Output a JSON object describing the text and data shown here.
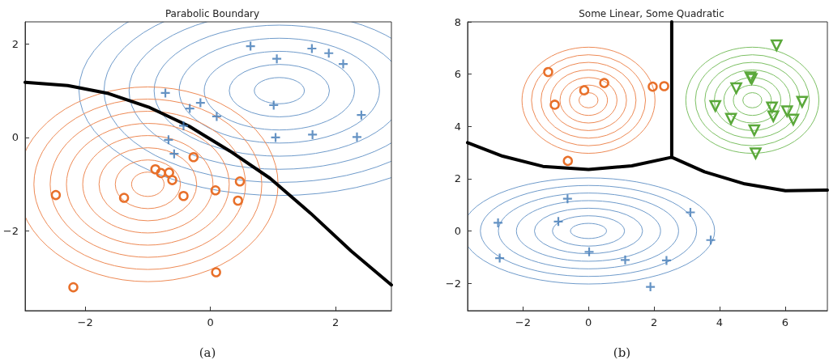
{
  "chart_data": [
    {
      "type": "scatter",
      "title": "Parabolic Boundary",
      "annotations": [
        "(a)"
      ],
      "xlim": [
        -2.96,
        2.89
      ],
      "ylim": [
        -3.7,
        2.47
      ],
      "xticks": [
        -2,
        0,
        2
      ],
      "yticks": [
        -2,
        0,
        2
      ],
      "grid": false,
      "series": [
        {
          "type": "line",
          "color": "#000000",
          "marker": "none",
          "x": [
            -2.96,
            -2.28,
            -1.63,
            -0.99,
            -0.34,
            0.31,
            0.95,
            1.6,
            2.25,
            2.89
          ],
          "values": [
            1.18,
            1.11,
            0.94,
            0.65,
            0.24,
            -0.29,
            -0.87,
            -1.62,
            -2.43,
            -3.15
          ]
        },
        {
          "color": "#3f78b5",
          "marker": "cross",
          "x": [
            0.64,
            1.06,
            1.62,
            1.89,
            2.12,
            -0.72,
            -0.33,
            -0.16,
            0.1,
            1.01,
            2.41,
            -0.43,
            -0.67,
            1.04,
            1.63,
            2.34,
            -0.58
          ],
          "values": [
            1.95,
            1.68,
            1.9,
            1.8,
            1.57,
            0.95,
            0.62,
            0.74,
            0.45,
            0.69,
            0.48,
            0.25,
            -0.05,
            0.0,
            0.06,
            0.01,
            -0.35
          ]
        },
        {
          "color": "#e8702a",
          "marker": "circle",
          "x": [
            -0.27,
            -0.88,
            -0.79,
            -0.66,
            -0.61,
            0.47,
            0.08,
            -0.43,
            -1.38,
            -2.47,
            0.44,
            0.09,
            -2.19
          ],
          "values": [
            -0.42,
            -0.68,
            -0.76,
            -0.75,
            -0.91,
            -0.94,
            -1.13,
            -1.25,
            -1.29,
            -1.23,
            -1.35,
            -2.88,
            -3.2
          ]
        }
      ]
    },
    {
      "type": "scatter",
      "title": "Some Linear, Some Quadratic",
      "annotations": [
        "(b)"
      ],
      "xlim": [
        -3.69,
        7.29
      ],
      "ylim": [
        -3.05,
        8
      ],
      "xticks": [
        -2,
        0,
        2,
        4,
        6
      ],
      "yticks": [
        -2,
        0,
        2,
        4,
        6,
        8
      ],
      "grid": false,
      "series": [
        {
          "type": "line",
          "color": "#000000",
          "marker": "none",
          "x": [
            2.54,
            2.54
          ],
          "values": [
            8,
            2.82
          ]
        },
        {
          "type": "line",
          "color": "#000000",
          "marker": "none",
          "x": [
            -3.69,
            -2.62,
            -1.39,
            0,
            1.32,
            2.54
          ],
          "values": [
            3.38,
            2.86,
            2.47,
            2.35,
            2.49,
            2.82
          ]
        },
        {
          "type": "line",
          "color": "#000000",
          "marker": "none",
          "x": [
            2.54,
            3.54,
            4.77,
            6.01,
            7.29
          ],
          "values": [
            2.82,
            2.26,
            1.8,
            1.54,
            1.56
          ]
        },
        {
          "color": "#e8702a",
          "marker": "circle",
          "x": [
            -1.23,
            -0.13,
            0.48,
            -1.03,
            1.96,
            2.31,
            -0.63
          ],
          "values": [
            6.08,
            5.38,
            5.66,
            4.83,
            5.52,
            5.54,
            2.68
          ]
        },
        {
          "color": "#5aa83a",
          "marker": "triangle",
          "x": [
            5.74,
            4.94,
            4.98,
            4.51,
            3.87,
            5.6,
            6.06,
            6.52,
            4.35,
            5.64,
            6.25,
            5.06,
            5.1
          ],
          "values": [
            7.1,
            5.88,
            5.82,
            5.46,
            4.78,
            4.73,
            4.58,
            4.94,
            4.29,
            4.39,
            4.26,
            3.85,
            2.97
          ]
        },
        {
          "color": "#3f78b5",
          "marker": "cross",
          "x": [
            -0.64,
            -2.76,
            -0.92,
            3.11,
            3.73,
            0.02,
            -2.71,
            1.12,
            2.38,
            1.89
          ],
          "values": [
            1.23,
            0.31,
            0.36,
            0.71,
            -0.35,
            -0.8,
            -1.04,
            -1.11,
            -1.13,
            -2.14
          ]
        }
      ]
    }
  ]
}
